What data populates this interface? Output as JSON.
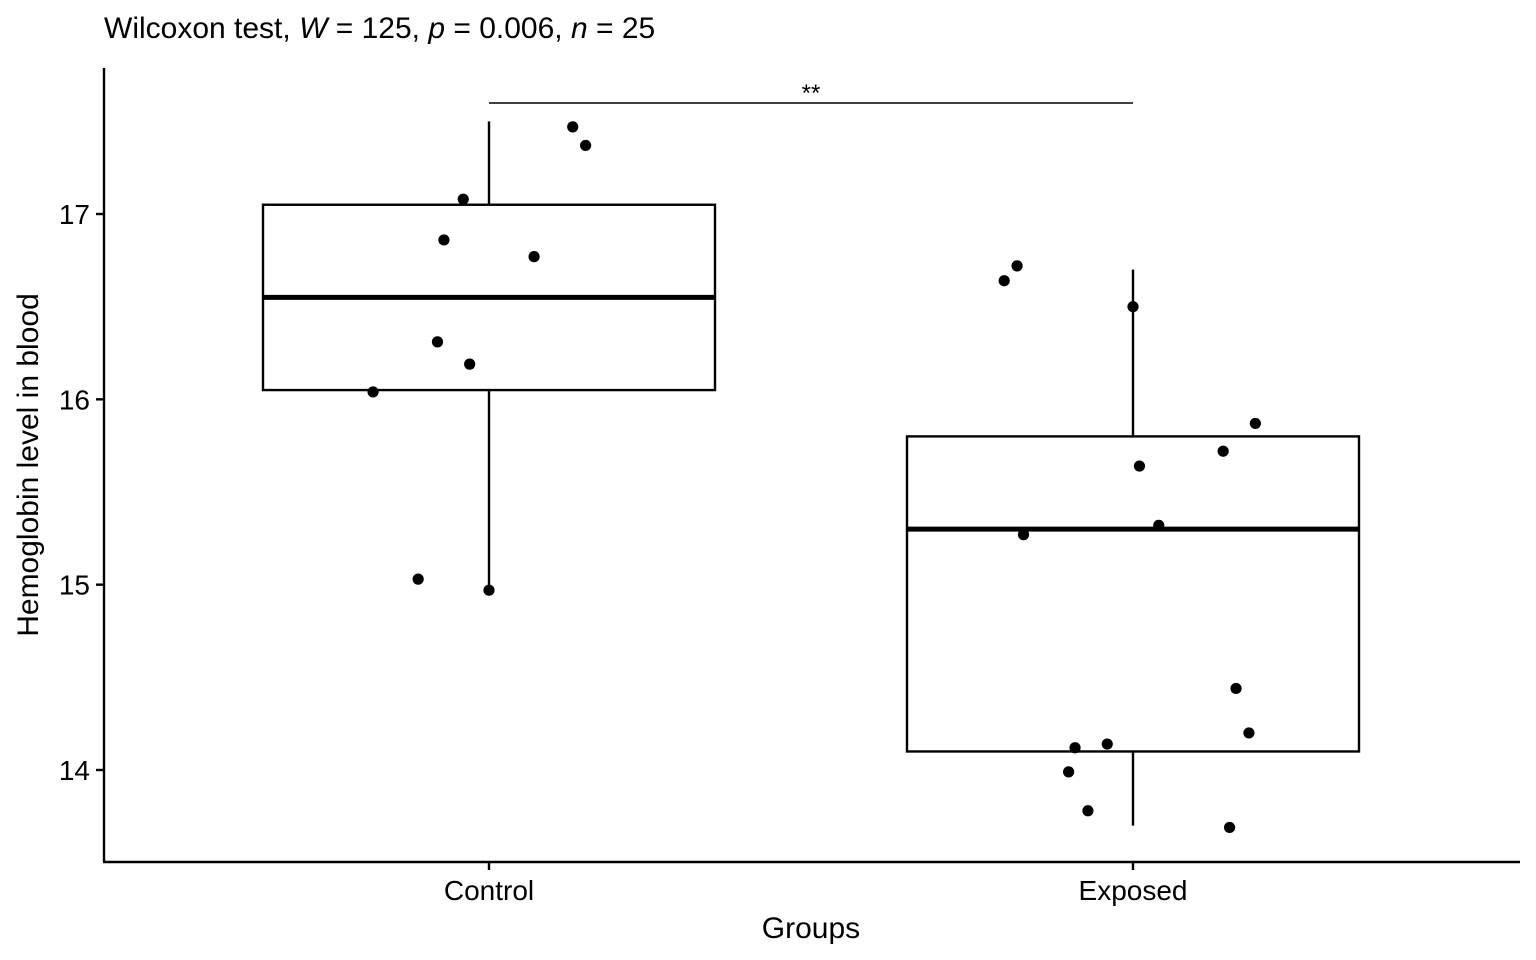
{
  "chart_data": {
    "type": "box",
    "title_parts": [
      {
        "text": "Wilcoxon test, ",
        "italic": false
      },
      {
        "text": "W",
        "italic": true
      },
      {
        "text": " = 125, ",
        "italic": false
      },
      {
        "text": "p",
        "italic": true
      },
      {
        "text": " = 0.006, ",
        "italic": false
      },
      {
        "text": "n",
        "italic": true
      },
      {
        "text": " = 25",
        "italic": false
      }
    ],
    "xlabel": "Groups",
    "ylabel": "Hemoglobin level in blood",
    "ylim": [
      13.5,
      17.8
    ],
    "yticks": [
      14,
      15,
      16,
      17
    ],
    "ytick_labels": [
      "14",
      "15",
      "16",
      "17"
    ],
    "categories": [
      "Control",
      "Exposed"
    ],
    "boxes": [
      {
        "group": "Control",
        "whisker_low": 14.97,
        "q1": 16.05,
        "median": 16.55,
        "q3": 17.05,
        "whisker_high": 17.5
      },
      {
        "group": "Exposed",
        "whisker_low": 13.7,
        "q1": 14.1,
        "median": 15.3,
        "q3": 15.8,
        "whisker_high": 16.7
      }
    ],
    "points": [
      {
        "group": "Control",
        "jitter": 0.13,
        "y": 17.47
      },
      {
        "group": "Control",
        "jitter": 0.15,
        "y": 17.37
      },
      {
        "group": "Control",
        "jitter": -0.04,
        "y": 17.08
      },
      {
        "group": "Control",
        "jitter": -0.07,
        "y": 16.86
      },
      {
        "group": "Control",
        "jitter": 0.07,
        "y": 16.77
      },
      {
        "group": "Control",
        "jitter": -0.08,
        "y": 16.31
      },
      {
        "group": "Control",
        "jitter": -0.03,
        "y": 16.19
      },
      {
        "group": "Control",
        "jitter": -0.18,
        "y": 16.04
      },
      {
        "group": "Control",
        "jitter": -0.11,
        "y": 15.03
      },
      {
        "group": "Control",
        "jitter": 0.0,
        "y": 14.97
      },
      {
        "group": "Exposed",
        "jitter": -0.18,
        "y": 16.72
      },
      {
        "group": "Exposed",
        "jitter": -0.2,
        "y": 16.64
      },
      {
        "group": "Exposed",
        "jitter": 0.0,
        "y": 16.5
      },
      {
        "group": "Exposed",
        "jitter": 0.19,
        "y": 15.87
      },
      {
        "group": "Exposed",
        "jitter": 0.14,
        "y": 15.72
      },
      {
        "group": "Exposed",
        "jitter": 0.01,
        "y": 15.64
      },
      {
        "group": "Exposed",
        "jitter": 0.04,
        "y": 15.32
      },
      {
        "group": "Exposed",
        "jitter": -0.17,
        "y": 15.27
      },
      {
        "group": "Exposed",
        "jitter": 0.16,
        "y": 14.44
      },
      {
        "group": "Exposed",
        "jitter": 0.18,
        "y": 14.2
      },
      {
        "group": "Exposed",
        "jitter": -0.04,
        "y": 14.14
      },
      {
        "group": "Exposed",
        "jitter": -0.09,
        "y": 14.12
      },
      {
        "group": "Exposed",
        "jitter": -0.1,
        "y": 13.99
      },
      {
        "group": "Exposed",
        "jitter": -0.07,
        "y": 13.78
      },
      {
        "group": "Exposed",
        "jitter": 0.15,
        "y": 13.69
      }
    ],
    "comparison": {
      "from": "Control",
      "to": "Exposed",
      "y": 17.6,
      "label": "**"
    },
    "grid": false,
    "legend": "none"
  }
}
